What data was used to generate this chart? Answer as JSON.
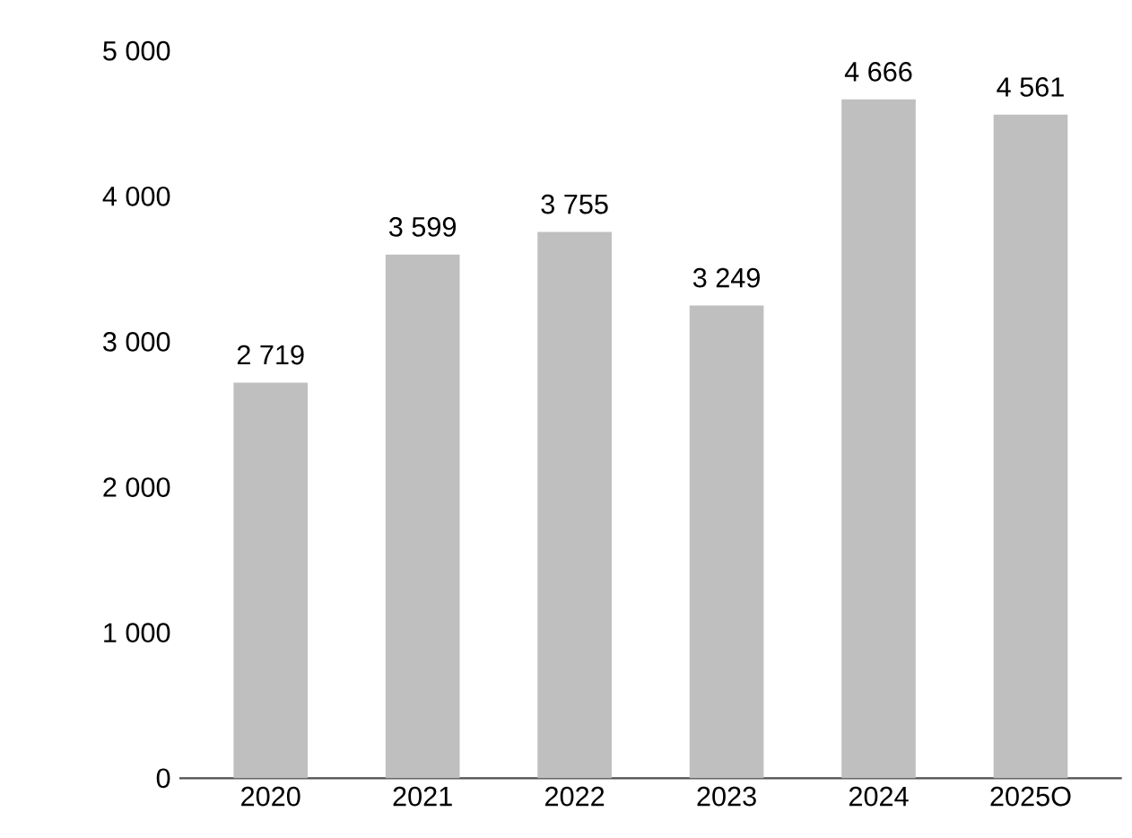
{
  "chart_data": {
    "type": "bar",
    "categories": [
      "2020",
      "2021",
      "2022",
      "2023",
      "2024",
      "2025O"
    ],
    "values": [
      2719,
      3599,
      3755,
      3249,
      4666,
      4561
    ],
    "value_labels": [
      "2 719",
      "3 599",
      "3 755",
      "3 249",
      "4 666",
      "4 561"
    ],
    "color": "#bfbfbf",
    "ylim": [
      0,
      5000
    ],
    "yticks": [
      {
        "value": 0,
        "label": "0"
      },
      {
        "value": 1000,
        "label": "1 000"
      },
      {
        "value": 2000,
        "label": "2 000"
      },
      {
        "value": 3000,
        "label": "3 000"
      },
      {
        "value": 4000,
        "label": "4 000"
      },
      {
        "value": 5000,
        "label": "5 000"
      }
    ]
  }
}
